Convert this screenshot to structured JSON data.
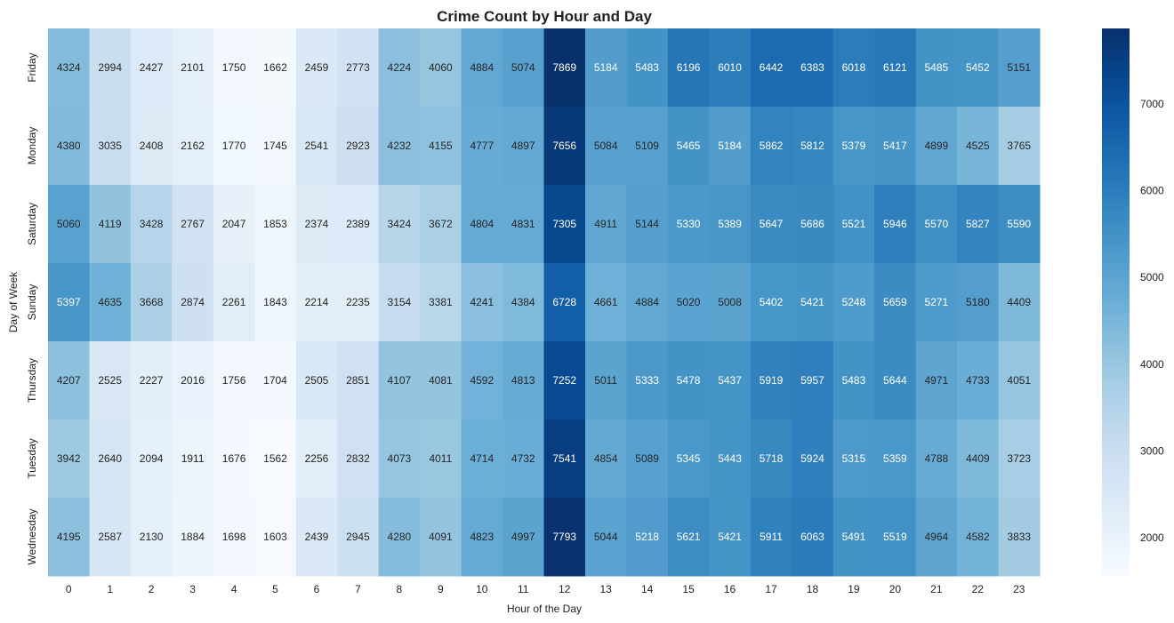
{
  "chart_data": {
    "type": "heatmap",
    "title": "Crime Count by Hour and Day",
    "xlabel": "Hour of the Day",
    "ylabel": "Day of Week",
    "x": [
      0,
      1,
      2,
      3,
      4,
      5,
      6,
      7,
      8,
      9,
      10,
      11,
      12,
      13,
      14,
      15,
      16,
      17,
      18,
      19,
      20,
      21,
      22,
      23
    ],
    "y": [
      "Friday",
      "Monday",
      "Saturday",
      "Sunday",
      "Thursday",
      "Tuesday",
      "Wednesday"
    ],
    "values": [
      [
        4324,
        2994,
        2427,
        2101,
        1750,
        1662,
        2459,
        2773,
        4224,
        4060,
        4884,
        5074,
        7869,
        5184,
        5483,
        6196,
        6010,
        6442,
        6383,
        6018,
        6121,
        5485,
        5452,
        5151
      ],
      [
        4380,
        3035,
        2408,
        2162,
        1770,
        1745,
        2541,
        2923,
        4232,
        4155,
        4777,
        4897,
        7656,
        5084,
        5109,
        5465,
        5184,
        5862,
        5812,
        5379,
        5417,
        4899,
        4525,
        3765
      ],
      [
        5060,
        4119,
        3428,
        2767,
        2047,
        1853,
        2374,
        2389,
        3424,
        3672,
        4804,
        4831,
        7305,
        4911,
        5144,
        5330,
        5389,
        5647,
        5686,
        5521,
        5946,
        5570,
        5827,
        5590
      ],
      [
        5397,
        4635,
        3668,
        2874,
        2261,
        1843,
        2214,
        2235,
        3154,
        3381,
        4241,
        4384,
        6728,
        4661,
        4884,
        5020,
        5008,
        5402,
        5421,
        5248,
        5659,
        5271,
        5180,
        4409
      ],
      [
        4207,
        2525,
        2227,
        2016,
        1756,
        1704,
        2505,
        2851,
        4107,
        4081,
        4592,
        4813,
        7252,
        5011,
        5333,
        5478,
        5437,
        5919,
        5957,
        5483,
        5644,
        4971,
        4733,
        4051
      ],
      [
        3942,
        2640,
        2094,
        1911,
        1676,
        1562,
        2256,
        2832,
        4073,
        4011,
        4714,
        4732,
        7541,
        4854,
        5089,
        5345,
        5443,
        5718,
        5924,
        5315,
        5359,
        4788,
        4409,
        3723
      ],
      [
        4195,
        2587,
        2130,
        1884,
        1698,
        1603,
        2439,
        2945,
        4280,
        4091,
        4823,
        4997,
        7793,
        5044,
        5218,
        5621,
        5421,
        5911,
        6063,
        5491,
        5519,
        4964,
        4582,
        3833
      ]
    ],
    "colormap": "Blues",
    "vmin": 1562,
    "vmax": 7869,
    "colorbar_ticks": [
      2000,
      3000,
      4000,
      5000,
      6000,
      7000
    ],
    "annotations": true
  }
}
